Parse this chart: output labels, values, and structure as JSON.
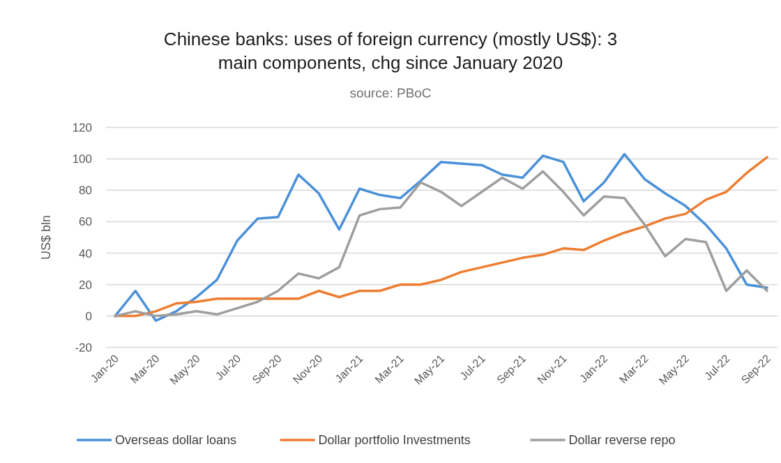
{
  "chart_data": {
    "type": "line",
    "title": "Chinese banks: uses of foreign currency (mostly US$): 3 main components, chg since January 2020",
    "subtitle": "source: PBoC",
    "ylabel": "US$ bln",
    "categories": [
      "Jan-20",
      null,
      "Mar-20",
      null,
      "May-20",
      null,
      "Jul-20",
      null,
      "Sep-20",
      null,
      "Nov-20",
      null,
      "Jan-21",
      null,
      "Mar-21",
      null,
      "May-21",
      null,
      "Jul-21",
      null,
      "Sep-21",
      null,
      "Nov-21",
      null,
      "Jan-22",
      null,
      "Mar-22",
      null,
      "May-22",
      null,
      "Jul-22",
      null,
      "Sep-22"
    ],
    "series": [
      {
        "name": "Overseas dollar loans",
        "color": "#4a90d9",
        "values": [
          0,
          16,
          -3,
          3,
          12,
          23,
          48,
          62,
          63,
          90,
          78,
          55,
          81,
          77,
          75,
          86,
          98,
          97,
          96,
          90,
          88,
          102,
          98,
          73,
          85,
          103,
          87,
          78,
          70,
          58,
          43,
          20,
          18
        ]
      },
      {
        "name": "Dollar portfolio Investments",
        "color": "#ed7d31",
        "values": [
          0,
          0,
          3,
          8,
          9,
          11,
          11,
          11,
          11,
          11,
          16,
          12,
          16,
          16,
          20,
          20,
          23,
          28,
          31,
          34,
          37,
          39,
          43,
          42,
          48,
          53,
          57,
          62,
          65,
          74,
          79,
          91,
          101
        ]
      },
      {
        "name": "Dollar reverse repo",
        "color": "#9e9e9e",
        "values": [
          0,
          3,
          0,
          1,
          3,
          1,
          5,
          9,
          16,
          27,
          24,
          31,
          64,
          68,
          69,
          85,
          79,
          70,
          79,
          88,
          81,
          92,
          79,
          64,
          76,
          75,
          58,
          38,
          49,
          47,
          16,
          29,
          16
        ]
      }
    ],
    "ylim": [
      -20,
      120
    ],
    "yticks": [
      -20,
      0,
      20,
      40,
      60,
      80,
      100,
      120
    ],
    "grid": "y",
    "legend": "bottom",
    "marker": "none",
    "line_style": "solid"
  }
}
